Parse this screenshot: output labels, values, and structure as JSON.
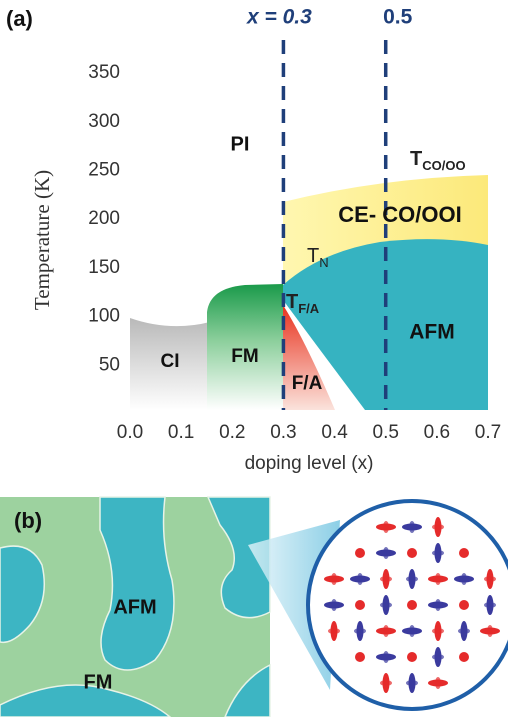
{
  "panel_labels": [
    "(a)",
    "(b)"
  ],
  "chart_data": {
    "type": "phase",
    "xlabel": "doping level (x)",
    "ylabel": "Temperature (K)",
    "xlim": [
      0,
      0.7
    ],
    "ylim": [
      0,
      360
    ],
    "xticks": [
      {
        "value": 0,
        "label": "0.0"
      },
      0.1,
      0.2,
      0.3,
      0.4,
      0.5,
      0.6,
      0.7
    ],
    "yticks": [
      50,
      100,
      150,
      200,
      250,
      300,
      350
    ],
    "markers": [
      {
        "value": 0.3,
        "label": "x = 0.3"
      },
      {
        "value": 0.5,
        "label": "0.5"
      }
    ],
    "regions": [
      "PI",
      "CI",
      "FM",
      "F/A",
      "AFM",
      "CE- CO/OOI"
    ],
    "transitions": [
      {
        "symbol": "T",
        "subscript": "CO/OO"
      },
      {
        "symbol": "T",
        "subscript": "N"
      },
      {
        "symbol": "T",
        "subscript": "F/A"
      }
    ]
  },
  "panel_b": {
    "labels": [
      "AFM",
      "FM"
    ]
  }
}
